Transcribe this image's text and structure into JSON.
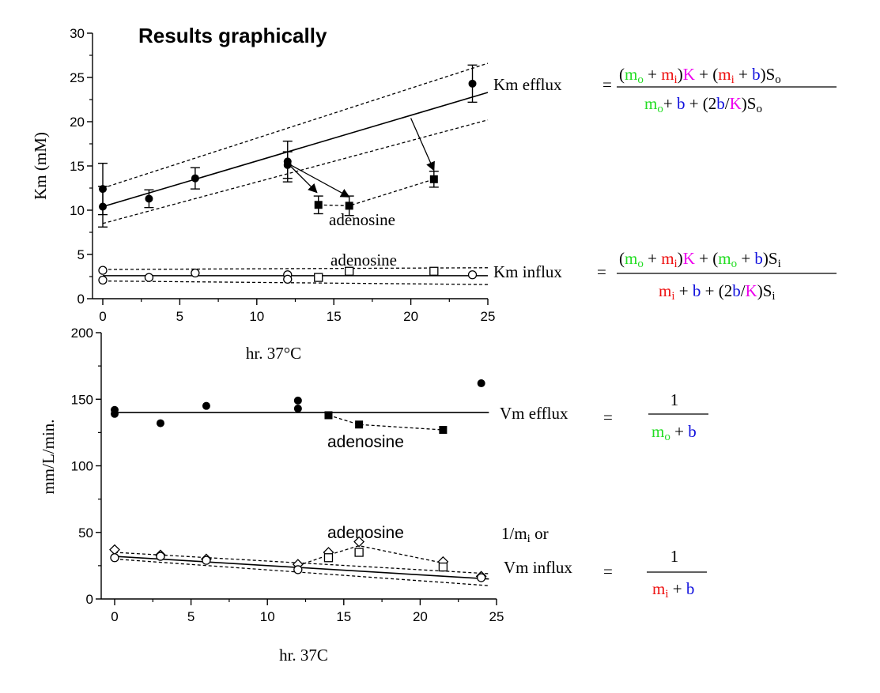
{
  "title": "Results graphically",
  "colors": {
    "m_o": "#22dd22",
    "m_i": "#ee1111",
    "K": "#ee00ee",
    "b": "#1111dd",
    "ink": "#000000"
  },
  "chart_data": [
    {
      "type": "scatter",
      "panel": "top",
      "xlabel": "hr. 37°C",
      "ylabel": "Km (mM)",
      "xlim": [
        0,
        25
      ],
      "ylim": [
        0,
        30
      ],
      "xticks": [
        "0",
        "5",
        "10",
        "15",
        "20",
        "25"
      ],
      "yticks": [
        "0",
        "5",
        "10",
        "15",
        "20",
        "25",
        "30"
      ],
      "series": [
        {
          "role": "efflux-control",
          "marker": "filled-circle",
          "x": [
            0,
            0,
            3,
            6,
            12,
            12,
            24
          ],
          "y": [
            12.4,
            10.4,
            11.3,
            13.6,
            15.5,
            15.1,
            24.3
          ],
          "err": [
            2.9,
            2.3,
            1.0,
            1.2,
            2.3,
            1.5,
            2.1
          ]
        },
        {
          "role": "efflux-adenosine",
          "marker": "filled-square",
          "x": [
            14,
            16,
            21.5
          ],
          "y": [
            10.6,
            10.5,
            13.5
          ],
          "err": [
            1.0,
            1.1,
            0.9
          ]
        },
        {
          "role": "efflux-fit",
          "line": "solid",
          "x": [
            0,
            25
          ],
          "y": [
            10.4,
            23.3
          ]
        },
        {
          "role": "efflux-upper",
          "line": "dashed",
          "x": [
            0,
            25
          ],
          "y": [
            12.5,
            26.6
          ]
        },
        {
          "role": "efflux-lower",
          "line": "dashed",
          "x": [
            0,
            25
          ],
          "y": [
            8.5,
            20.2
          ]
        },
        {
          "role": "adenosine-efflux-connector",
          "line": "dashed",
          "x": [
            14,
            16,
            21.5
          ],
          "y": [
            10.6,
            10.5,
            13.5
          ]
        },
        {
          "role": "influx-control",
          "marker": "open-circle",
          "x": [
            0,
            0,
            3,
            6,
            12,
            12,
            24
          ],
          "y": [
            3.2,
            2.1,
            2.4,
            2.9,
            2.7,
            2.2,
            2.7
          ]
        },
        {
          "role": "influx-adenosine",
          "marker": "open-square",
          "x": [
            14,
            16,
            21.5
          ],
          "y": [
            2.4,
            3.1,
            3.1
          ]
        },
        {
          "role": "influx-fit",
          "line": "solid",
          "x": [
            0,
            25
          ],
          "y": [
            2.6,
            2.6
          ]
        },
        {
          "role": "influx-upper",
          "line": "dashed",
          "x": [
            0,
            25
          ],
          "y": [
            3.3,
            3.5
          ]
        },
        {
          "role": "influx-lower",
          "line": "dashed",
          "x": [
            0,
            25
          ],
          "y": [
            2.0,
            1.6
          ]
        }
      ],
      "arrows": [
        {
          "from": [
            12,
            15.3
          ],
          "to": [
            13.9,
            12.0
          ]
        },
        {
          "from": [
            12,
            15.3
          ],
          "to": [
            16.0,
            11.5
          ]
        },
        {
          "from": [
            20.0,
            20.4
          ],
          "to": [
            21.5,
            14.5
          ]
        }
      ],
      "annotations": [
        "adenosine",
        "adenosine"
      ],
      "equations": [
        {
          "label": "Km efflux"
        },
        {
          "label": "Km influx"
        }
      ]
    },
    {
      "type": "scatter",
      "panel": "bottom",
      "xlabel": "hr. 37C",
      "ylabel": "mm/L/min.",
      "xlim": [
        0,
        25
      ],
      "ylim": [
        0,
        200
      ],
      "xticks": [
        "0",
        "5",
        "10",
        "15",
        "20",
        "25"
      ],
      "yticks": [
        "0",
        "50",
        "100",
        "150",
        "200"
      ],
      "series": [
        {
          "role": "efflux-control",
          "marker": "filled-circle",
          "x": [
            0,
            0,
            3,
            6,
            12,
            12,
            24
          ],
          "y": [
            142,
            139,
            132,
            145,
            149,
            143,
            162
          ]
        },
        {
          "role": "efflux-adenosine",
          "marker": "filled-square",
          "x": [
            14,
            16,
            21.5
          ],
          "y": [
            138,
            131,
            127
          ]
        },
        {
          "role": "efflux-fit",
          "line": "solid",
          "x": [
            0,
            24.5
          ],
          "y": [
            140,
            140
          ]
        },
        {
          "role": "adenosine-efflux-connector",
          "line": "dashed",
          "x": [
            14,
            16,
            21.5
          ],
          "y": [
            138,
            131,
            127
          ]
        },
        {
          "role": "influx-diamond",
          "marker": "open-diamond",
          "x": [
            0,
            3,
            6,
            12,
            14,
            16,
            21.5,
            24
          ],
          "y": [
            37,
            33,
            30,
            26,
            35,
            43,
            28,
            17
          ]
        },
        {
          "role": "influx-circle",
          "marker": "open-circle",
          "x": [
            0,
            3,
            6,
            12,
            24
          ],
          "y": [
            31,
            32,
            29,
            22,
            16
          ]
        },
        {
          "role": "influx-square",
          "marker": "open-square",
          "x": [
            14,
            16,
            21.5
          ],
          "y": [
            31,
            35,
            24
          ]
        },
        {
          "role": "influx-adenosine-connector",
          "line": "dashed",
          "x": [
            12,
            14,
            16,
            21.5
          ],
          "y": [
            25,
            33,
            40,
            27
          ]
        },
        {
          "role": "influx-fit",
          "line": "solid",
          "x": [
            0,
            24.5
          ],
          "y": [
            32,
            15
          ]
        },
        {
          "role": "influx-upper",
          "line": "dashed",
          "x": [
            0,
            24.5
          ],
          "y": [
            35,
            19
          ]
        },
        {
          "role": "influx-lower",
          "line": "dashed",
          "x": [
            0,
            24.5
          ],
          "y": [
            30,
            10
          ]
        }
      ],
      "annotations": [
        "adenosine",
        "adenosine"
      ],
      "equations": [
        {
          "label": "Vm efflux"
        },
        {
          "label": "1/mi or Vm influx"
        }
      ]
    }
  ]
}
